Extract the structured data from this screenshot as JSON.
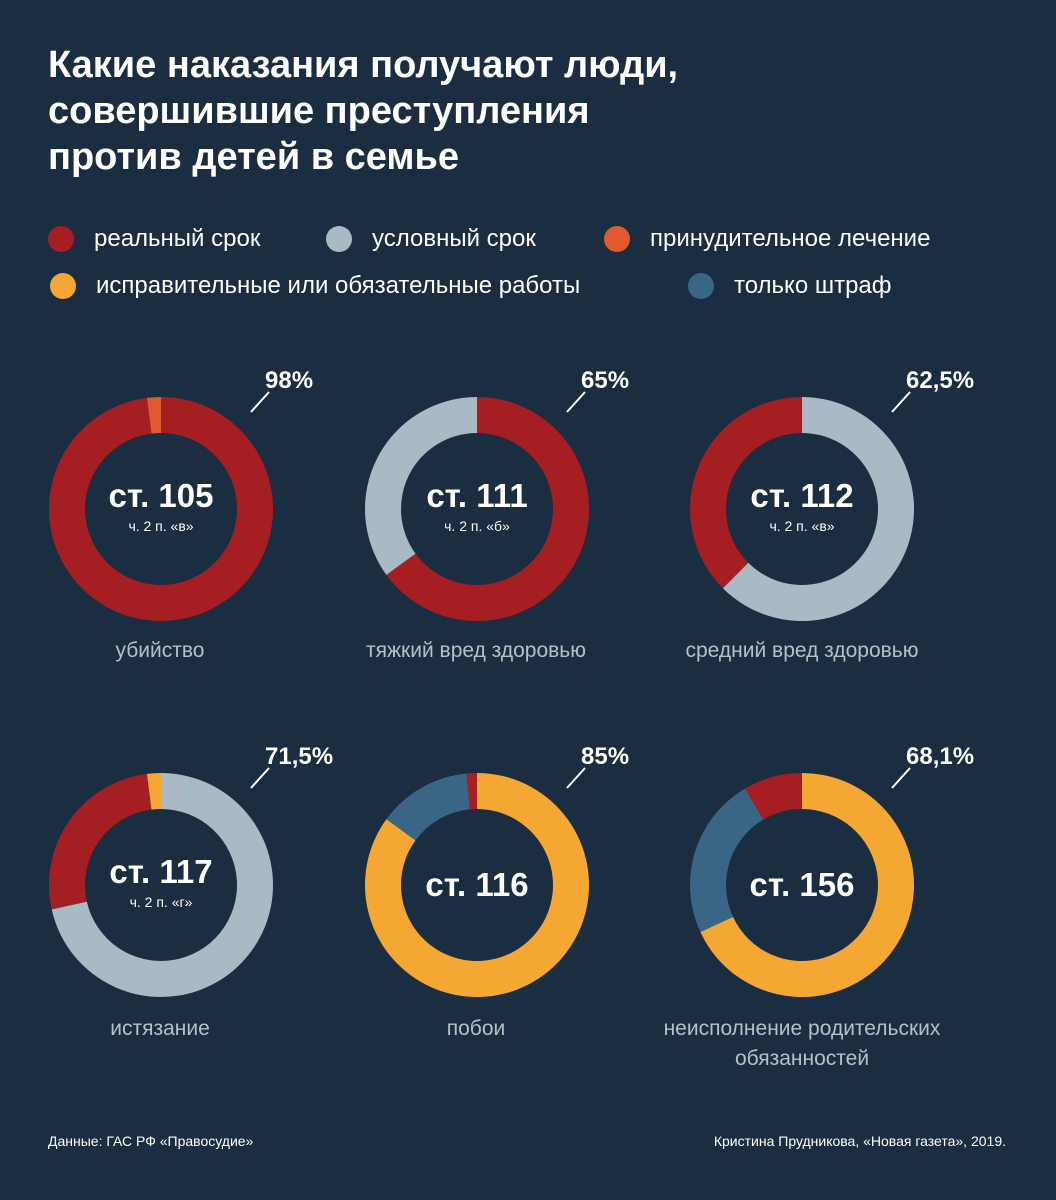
{
  "title": {
    "line1": "Какие наказания получают люди,",
    "line2": "совершившие преступления",
    "line3": "против детей в семье"
  },
  "legend": [
    {
      "key": "real",
      "label": "реальный срок",
      "color": "#a51e22"
    },
    {
      "key": "conditional",
      "label": "условный срок",
      "color": "#a9bac4"
    },
    {
      "key": "forced",
      "label": "принудительное лечение",
      "color": "#e05a2e"
    },
    {
      "key": "works",
      "label": "исправительные или обязательные работы",
      "color": "#f5a733"
    },
    {
      "key": "fine",
      "label": "только штраф",
      "color": "#3a6686"
    }
  ],
  "chart_data": [
    {
      "type": "pie",
      "article": "ст. 105",
      "part": "ч. 2 п. «в»",
      "caption": "убийство",
      "highlight_label": "98%",
      "series": [
        {
          "name": "реальный срок",
          "value": 98
        },
        {
          "name": "принудительное лечение",
          "value": 2
        }
      ]
    },
    {
      "type": "pie",
      "article": "ст. 111",
      "part": "ч. 2 п. «б»",
      "caption": "тяжкий вред здоровью",
      "highlight_label": "65%",
      "series": [
        {
          "name": "реальный срок",
          "value": 65
        },
        {
          "name": "условный срок",
          "value": 35
        }
      ]
    },
    {
      "type": "pie",
      "article": "ст. 112",
      "part": "ч. 2 п. «в»",
      "caption": "средний вред здоровью",
      "highlight_label": "62,5%",
      "series": [
        {
          "name": "условный срок",
          "value": 62.5
        },
        {
          "name": "реальный срок",
          "value": 37.5
        }
      ]
    },
    {
      "type": "pie",
      "article": "ст. 117",
      "part": "ч. 2 п. «г»",
      "caption": "истязание",
      "highlight_label": "71,5%",
      "series": [
        {
          "name": "условный срок",
          "value": 71.5
        },
        {
          "name": "реальный срок",
          "value": 26.5
        },
        {
          "name": "исправительные или обязательные работы",
          "value": 2
        }
      ]
    },
    {
      "type": "pie",
      "article": "ст. 116",
      "part": "",
      "caption": "побои",
      "highlight_label": "85%",
      "series": [
        {
          "name": "исправительные или обязательные работы",
          "value": 85
        },
        {
          "name": "только штраф",
          "value": 13.5
        },
        {
          "name": "реальный срок",
          "value": 1.5
        }
      ]
    },
    {
      "type": "pie",
      "article": "ст. 156",
      "part": "",
      "caption": "неисполнение родительских обязанностей",
      "highlight_label": "68,1%",
      "series": [
        {
          "name": "исправительные или обязательные работы",
          "value": 68.1
        },
        {
          "name": "только штраф",
          "value": 23.4
        },
        {
          "name": "реальный срок",
          "value": 8.5
        }
      ]
    }
  ],
  "footer": {
    "source": "Данные: ГАС РФ «Правосудие»",
    "credit": "Кристина Прудникова, «Новая газета», 2019."
  }
}
